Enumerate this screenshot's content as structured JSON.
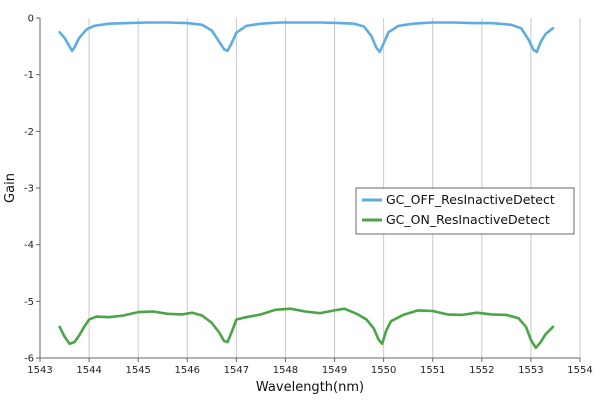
{
  "chart_data": {
    "type": "line",
    "xlabel": "Wavelength(nm)",
    "ylabel": "Gain",
    "xlim": [
      1543,
      1554
    ],
    "ylim": [
      -6,
      0
    ],
    "xticks": [
      1543,
      1544,
      1545,
      1546,
      1547,
      1548,
      1549,
      1550,
      1551,
      1552,
      1553,
      1554
    ],
    "yticks": [
      0,
      -1,
      -2,
      -3,
      -4,
      -5,
      -6
    ],
    "grid": "vertical",
    "legend_position": "right-middle",
    "series": [
      {
        "name": "GC_OFF_ResInactiveDetect",
        "color": "#5dade2",
        "x": [
          1543.4,
          1543.5,
          1543.6,
          1543.65,
          1543.7,
          1543.8,
          1543.95,
          1544.1,
          1544.4,
          1544.8,
          1545.2,
          1545.6,
          1546.0,
          1546.3,
          1546.5,
          1546.65,
          1546.75,
          1546.82,
          1546.9,
          1547.0,
          1547.2,
          1547.5,
          1547.9,
          1548.3,
          1548.7,
          1549.1,
          1549.4,
          1549.6,
          1549.75,
          1549.85,
          1549.92,
          1550.0,
          1550.1,
          1550.3,
          1550.6,
          1551.0,
          1551.4,
          1551.8,
          1552.2,
          1552.6,
          1552.8,
          1552.95,
          1553.05,
          1553.12,
          1553.2,
          1553.3,
          1553.45
        ],
        "y": [
          -0.25,
          -0.35,
          -0.5,
          -0.58,
          -0.52,
          -0.35,
          -0.2,
          -0.14,
          -0.1,
          -0.09,
          -0.08,
          -0.08,
          -0.09,
          -0.12,
          -0.22,
          -0.42,
          -0.55,
          -0.58,
          -0.45,
          -0.26,
          -0.14,
          -0.1,
          -0.08,
          -0.08,
          -0.08,
          -0.09,
          -0.1,
          -0.15,
          -0.32,
          -0.52,
          -0.6,
          -0.45,
          -0.25,
          -0.14,
          -0.1,
          -0.08,
          -0.08,
          -0.09,
          -0.09,
          -0.12,
          -0.18,
          -0.38,
          -0.56,
          -0.6,
          -0.42,
          -0.28,
          -0.18
        ]
      },
      {
        "name": "GC_ON_ResInactiveDetect",
        "color": "#4aa546",
        "x": [
          1543.4,
          1543.5,
          1543.6,
          1543.7,
          1543.8,
          1543.9,
          1544.0,
          1544.15,
          1544.4,
          1544.7,
          1545.0,
          1545.3,
          1545.6,
          1545.9,
          1546.1,
          1546.3,
          1546.5,
          1546.65,
          1546.75,
          1546.82,
          1546.9,
          1547.0,
          1547.2,
          1547.5,
          1547.8,
          1548.1,
          1548.4,
          1548.7,
          1549.0,
          1549.2,
          1549.45,
          1549.65,
          1549.8,
          1549.9,
          1549.97,
          1550.05,
          1550.15,
          1550.4,
          1550.7,
          1551.0,
          1551.3,
          1551.6,
          1551.9,
          1552.2,
          1552.5,
          1552.75,
          1552.9,
          1553.0,
          1553.1,
          1553.2,
          1553.3,
          1553.45
        ],
        "y": [
          -5.45,
          -5.62,
          -5.75,
          -5.72,
          -5.6,
          -5.45,
          -5.32,
          -5.27,
          -5.28,
          -5.25,
          -5.19,
          -5.18,
          -5.22,
          -5.23,
          -5.2,
          -5.25,
          -5.38,
          -5.55,
          -5.7,
          -5.72,
          -5.55,
          -5.32,
          -5.28,
          -5.23,
          -5.15,
          -5.13,
          -5.18,
          -5.21,
          -5.16,
          -5.13,
          -5.22,
          -5.32,
          -5.48,
          -5.68,
          -5.75,
          -5.52,
          -5.35,
          -5.24,
          -5.16,
          -5.17,
          -5.23,
          -5.24,
          -5.2,
          -5.23,
          -5.24,
          -5.3,
          -5.45,
          -5.68,
          -5.82,
          -5.72,
          -5.58,
          -5.45
        ]
      }
    ]
  }
}
